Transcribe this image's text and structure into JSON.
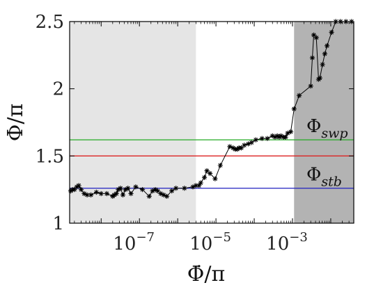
{
  "chart_data": {
    "type": "scatter",
    "xlabel": "Φ̇/π",
    "ylabel": "Φ/π",
    "x_scale": "log",
    "xlim": [
      1.5e-09,
      0.04
    ],
    "ylim": [
      1,
      2.5
    ],
    "x_ticks": [
      {
        "value": 1e-07,
        "base": "10",
        "exp": "−7"
      },
      {
        "value": 1e-05,
        "base": "10",
        "exp": "−5"
      },
      {
        "value": 0.001,
        "base": "10",
        "exp": "−3"
      }
    ],
    "y_ticks": [
      {
        "value": 1,
        "label": "1"
      },
      {
        "value": 1.5,
        "label": "1.5"
      },
      {
        "value": 2,
        "label": "2"
      },
      {
        "value": 2.5,
        "label": "2.5"
      }
    ],
    "shaded_regions": [
      {
        "x0": 1.5e-09,
        "x1": 3e-06,
        "color": "#e5e5e5"
      },
      {
        "x0": 0.0011,
        "x1": 0.04,
        "color": "#b3b3b3"
      }
    ],
    "hlines": [
      {
        "y": 1.62,
        "color": "#22aa22",
        "label_main": "Φ",
        "label_sub": "swp"
      },
      {
        "y": 1.5,
        "color": "#dd2222",
        "label_main": "",
        "label_sub": ""
      },
      {
        "y": 1.26,
        "color": "#1f1fbf",
        "label_main": "Φ",
        "label_sub": "stb"
      }
    ],
    "series": [
      {
        "marker": "asterisk",
        "color": "#000000",
        "points": [
          [
            1.6e-09,
            1.24
          ],
          [
            1.8e-09,
            1.25
          ],
          [
            2e-09,
            1.25
          ],
          [
            2.3e-09,
            1.27
          ],
          [
            2.6e-09,
            1.28
          ],
          [
            3e-09,
            1.25
          ],
          [
            3.6e-09,
            1.22
          ],
          [
            4.3e-09,
            1.21
          ],
          [
            5.4e-09,
            1.21
          ],
          [
            7.5e-09,
            1.23
          ],
          [
            1e-08,
            1.22
          ],
          [
            1.4e-08,
            1.22
          ],
          [
            2e-08,
            1.2
          ],
          [
            2.2e-08,
            1.21
          ],
          [
            2.5e-08,
            1.22
          ],
          [
            2.8e-08,
            1.25
          ],
          [
            3.2e-08,
            1.26
          ],
          [
            3.7e-08,
            1.21
          ],
          [
            4.3e-08,
            1.25
          ],
          [
            5e-08,
            1.26
          ],
          [
            6e-08,
            1.22
          ],
          [
            8e-08,
            1.27
          ],
          [
            1.2e-07,
            1.25
          ],
          [
            1.8e-07,
            1.2
          ],
          [
            2.2e-07,
            1.24
          ],
          [
            2.6e-07,
            1.25
          ],
          [
            3e-07,
            1.24
          ],
          [
            3.6e-07,
            1.22
          ],
          [
            4.3e-07,
            1.21
          ],
          [
            5.2e-07,
            1.2
          ],
          [
            7e-07,
            1.24
          ],
          [
            9e-07,
            1.26
          ],
          [
            1.5e-06,
            1.26
          ],
          [
            2.5e-06,
            1.27
          ],
          [
            3e-06,
            1.28
          ],
          [
            3.6e-06,
            1.28
          ],
          [
            4e-06,
            1.3
          ],
          [
            5e-06,
            1.34
          ],
          [
            5.8e-06,
            1.39
          ],
          [
            7e-06,
            1.37
          ],
          [
            9.5e-06,
            1.33
          ],
          [
            1.3e-05,
            1.43
          ],
          [
            2.3e-05,
            1.57
          ],
          [
            2.8e-05,
            1.56
          ],
          [
            3.2e-05,
            1.55
          ],
          [
            3.6e-05,
            1.55
          ],
          [
            4e-05,
            1.56
          ],
          [
            4.6e-05,
            1.56
          ],
          [
            5.5e-05,
            1.58
          ],
          [
            7e-05,
            1.59
          ],
          [
            8.5e-05,
            1.6
          ],
          [
            0.00011,
            1.62
          ],
          [
            0.00016,
            1.63
          ],
          [
            0.00022,
            1.63
          ],
          [
            0.0003,
            1.65
          ],
          [
            0.00035,
            1.64
          ],
          [
            0.0004,
            1.65
          ],
          [
            0.00045,
            1.64
          ],
          [
            0.0005,
            1.65
          ],
          [
            0.00058,
            1.64
          ],
          [
            0.00066,
            1.64
          ],
          [
            0.00075,
            1.67
          ],
          [
            0.0009,
            1.68
          ],
          [
            0.0011,
            1.85
          ],
          [
            0.0015,
            1.95
          ],
          [
            0.003,
            2.02
          ],
          [
            0.0033,
            2.23
          ],
          [
            0.0036,
            2.4
          ],
          [
            0.0042,
            2.38
          ],
          [
            0.0048,
            2.07
          ],
          [
            0.0052,
            2.08
          ],
          [
            0.0061,
            2.18
          ],
          [
            0.007,
            2.26
          ],
          [
            0.008,
            2.32
          ],
          [
            0.0105,
            2.42
          ],
          [
            0.0135,
            2.5
          ],
          [
            0.018,
            2.5
          ],
          [
            0.025,
            2.5
          ],
          [
            0.035,
            2.5
          ]
        ]
      }
    ]
  }
}
